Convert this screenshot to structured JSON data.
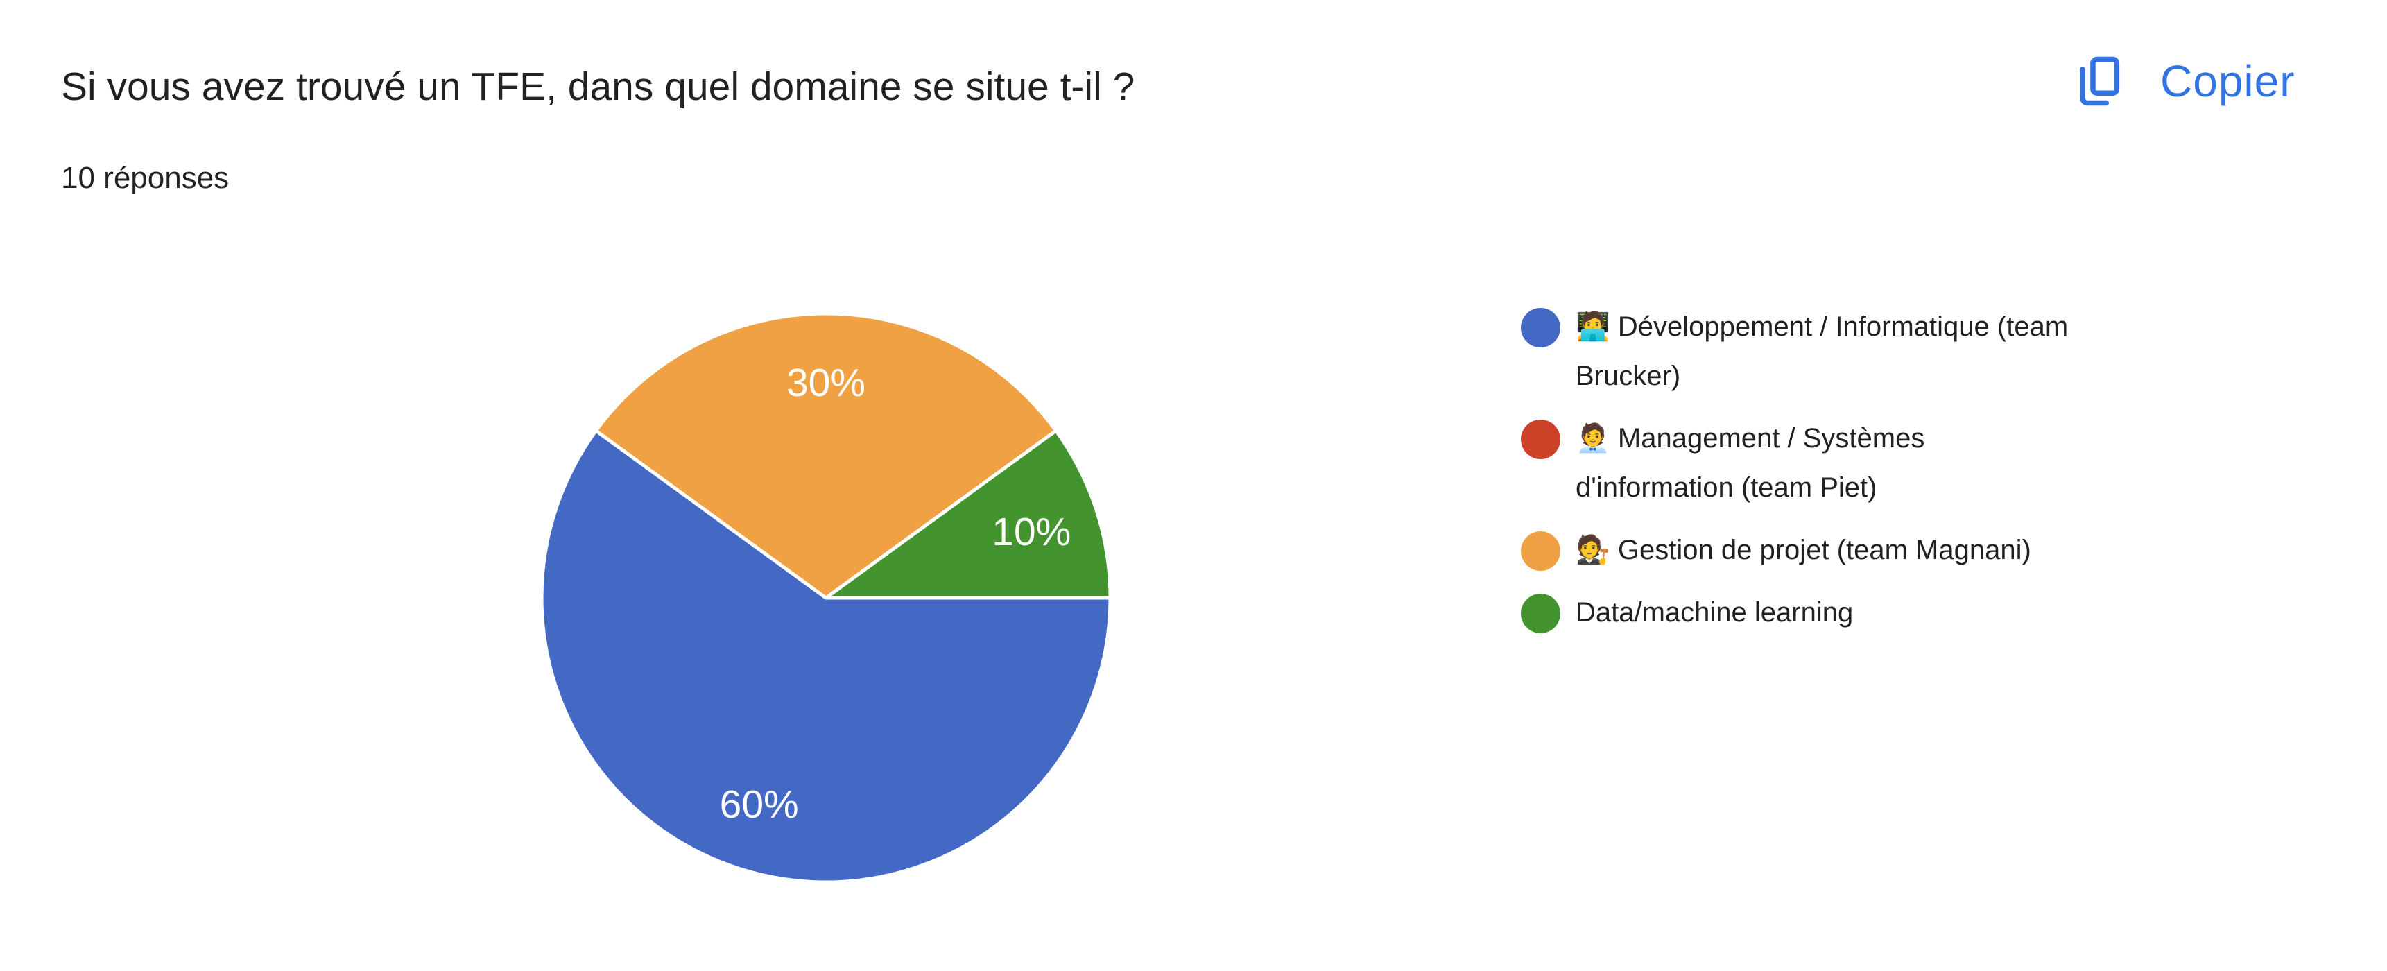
{
  "header": {
    "title": "Si vous avez trouvé un TFE, dans quel domaine se situe t-il ?",
    "responses": "10 réponses",
    "copy_label": "Copier",
    "accent_color": "#3273E3"
  },
  "chart_data": {
    "type": "pie",
    "title": "Si vous avez trouvé un TFE, dans quel domaine se situe t-il ?",
    "total_responses": 10,
    "unit": "percent",
    "start_angle_deg": 0,
    "direction": "clockwise",
    "legend_position": "right",
    "pie_label_color": "#FFFFFF",
    "slice_border_color": "#FFFFFF",
    "slices": [
      {
        "label": "🧑‍💻 Développement / Informatique (team Brucker)",
        "percent": 60,
        "color": "#4469C5",
        "pie_label": "60%"
      },
      {
        "label": "🧑‍💼 Management / Systèmes d'information (team Piet)",
        "percent": 0,
        "color": "#CC4128",
        "pie_label": ""
      },
      {
        "label": "🧑‍⚖️ Gestion de projet (team Magnani)",
        "percent": 30,
        "color": "#EFA143",
        "pie_label": "30%"
      },
      {
        "label": "Data/machine learning",
        "percent": 10,
        "color": "#43932E",
        "pie_label": "10%"
      }
    ]
  },
  "legend": {
    "items": [
      {
        "color": "#4469C5",
        "lines": [
          "🧑‍💻 Développement / Informatique (team",
          "Brucker)"
        ]
      },
      {
        "color": "#CC4128",
        "lines": [
          "🧑‍💼 Management / Systèmes",
          "d'information (team Piet)"
        ]
      },
      {
        "color": "#EFA143",
        "lines": [
          "🧑‍⚖️ Gestion de projet (team Magnani)"
        ]
      },
      {
        "color": "#43932E",
        "lines": [
          "Data/machine learning"
        ]
      }
    ]
  }
}
